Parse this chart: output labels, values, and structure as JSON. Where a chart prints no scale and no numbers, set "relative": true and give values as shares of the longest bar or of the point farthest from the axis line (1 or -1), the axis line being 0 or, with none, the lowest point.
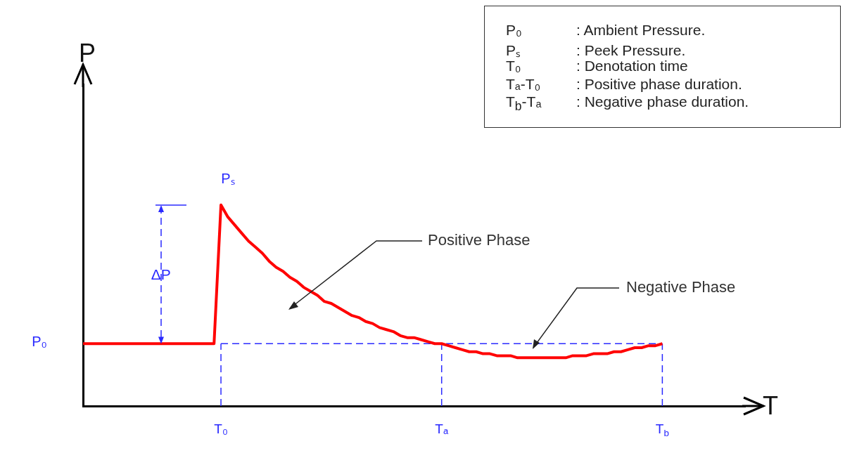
{
  "chart_data": {
    "type": "line",
    "relative": true,
    "xlabel": "T",
    "marker": "none",
    "line_style": "solid",
    "color": "#ff0000",
    "categories": [
      null,
      null,
      null,
      null,
      null,
      null,
      null,
      null,
      null,
      null,
      null,
      null,
      null,
      null,
      null,
      null,
      null,
      null,
      null,
      null,
      "T₀",
      null,
      null,
      null,
      null,
      null,
      null,
      null,
      null,
      null,
      null,
      null,
      null,
      null,
      null,
      null,
      null,
      null,
      null,
      null,
      null,
      null,
      null,
      null,
      null,
      null,
      null,
      null,
      null,
      null,
      null,
      null,
      "Tₐ",
      null,
      null,
      null,
      null,
      null,
      null,
      null,
      null,
      null,
      null,
      null,
      null,
      null,
      null,
      null,
      null,
      null,
      null,
      null,
      null,
      null,
      null,
      null,
      null,
      null,
      null,
      null,
      null,
      null,
      null,
      null,
      "T$_{b}$",
      null,
      null,
      null,
      null,
      null,
      null,
      null,
      null,
      null,
      null,
      null,
      null
    ],
    "values": [
      0.31,
      0.31,
      0.31,
      0.31,
      0.31,
      0.31,
      0.31,
      0.31,
      0.31,
      0.31,
      0.31,
      0.31,
      0.31,
      0.31,
      0.31,
      0.31,
      0.31,
      0.31,
      0.31,
      0.31,
      1,
      0.94,
      0.9,
      0.86,
      0.82,
      0.79,
      0.76,
      0.72,
      0.69,
      0.67,
      0.64,
      0.62,
      0.59,
      0.57,
      0.55,
      0.52,
      0.51,
      0.49,
      0.47,
      0.45,
      0.44,
      0.42,
      0.41,
      0.39,
      0.38,
      0.37,
      0.35,
      0.34,
      0.34,
      0.33,
      0.32,
      0.31,
      0.31,
      0.3,
      0.29,
      0.28,
      0.27,
      0.27,
      0.26,
      0.26,
      0.25,
      0.25,
      0.25,
      0.24,
      0.24,
      0.24,
      0.24,
      0.24,
      0.24,
      0.24,
      0.24,
      0.25,
      0.25,
      0.25,
      0.26,
      0.26,
      0.26,
      0.27,
      0.27,
      0.28,
      0.29,
      0.29,
      0.3,
      0.3,
      0.31,
      null,
      null,
      null,
      null,
      null,
      null,
      null,
      null,
      null,
      null,
      null,
      null
    ],
    "ref_lines": [
      {
        "axis": "x",
        "value": "T₀",
        "color": "#2a2aff",
        "line_style": "dashed"
      },
      {
        "axis": "x",
        "value": "Tₐ",
        "color": "#2a2aff",
        "line_style": "dashed"
      },
      {
        "axis": "x",
        "value": "T$_{b}$",
        "color": "#2a2aff",
        "line_style": "dashed"
      },
      {
        "axis": "y",
        "value": 0.31,
        "color": "#2a2aff",
        "line_style": "dashed"
      }
    ],
    "annotations": [
      "P",
      "Pₛ",
      "P₀",
      "ΔP",
      "Positive Phase",
      "Negative Phase",
      "P₀ : Ambient Pressure.",
      "Pₛ : Peek Pressure.",
      "T₀ : Denotation time",
      "Tₐ-T₀ : Positive phase duration.",
      "T$_{b}$-Tₐ : Negative phase duration."
    ]
  }
}
